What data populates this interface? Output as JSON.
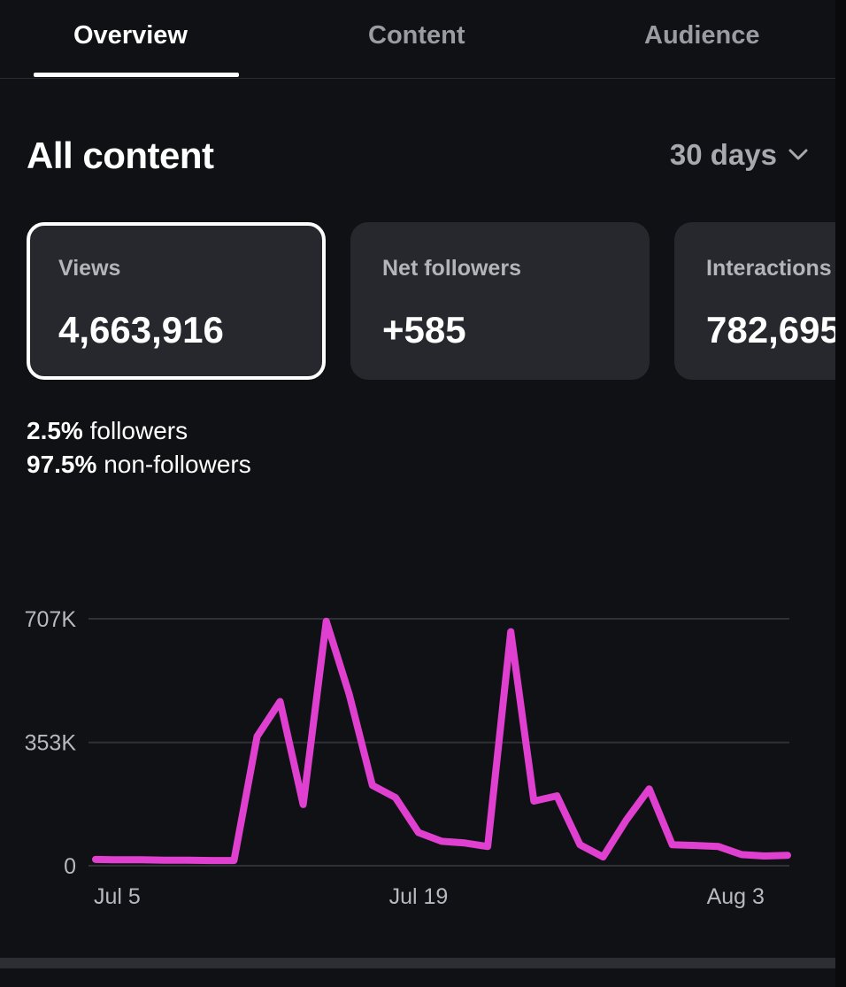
{
  "tabs": [
    {
      "label": "Overview",
      "active": true
    },
    {
      "label": "Content",
      "active": false
    },
    {
      "label": "Audience",
      "active": false
    }
  ],
  "section": {
    "title": "All content",
    "range": "30 days"
  },
  "cards": [
    {
      "label": "Views",
      "value": "4,663,916",
      "selected": true
    },
    {
      "label": "Net followers",
      "value": "+585",
      "selected": false
    },
    {
      "label": "Interactions",
      "value": "782,695",
      "selected": false
    }
  ],
  "breakdown": {
    "followers_pct": "2.5%",
    "followers_label": "followers",
    "nonfollowers_pct": "97.5%",
    "nonfollowers_label": "non-followers"
  },
  "colors": {
    "line": "#e040cf",
    "background": "#101114",
    "card": "#26282d",
    "grid": "#2f3136"
  },
  "chart_data": {
    "type": "line",
    "ytick_labels": [
      "0",
      "353K",
      "707K"
    ],
    "yticks": [
      0,
      353000,
      707000
    ],
    "ylim": [
      0,
      707000
    ],
    "xtick_labels": [
      "Jul 5",
      "Jul 19",
      "Aug 3"
    ],
    "xticks": [
      0,
      14,
      29
    ],
    "series": [
      {
        "values": [
          18000,
          17000,
          17000,
          16000,
          16000,
          15000,
          15000,
          370000,
          470000,
          175000,
          700000,
          490000,
          230000,
          195000,
          95000,
          70000,
          65000,
          55000,
          670000,
          185000,
          200000,
          60000,
          25000,
          130000,
          220000,
          60000,
          58000,
          55000,
          32000,
          28000,
          30000
        ]
      }
    ],
    "grid": true,
    "legend": "none"
  }
}
